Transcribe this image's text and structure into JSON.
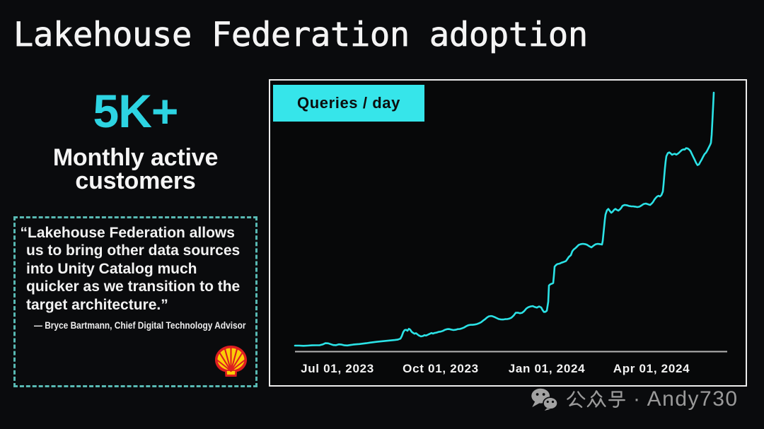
{
  "title": "Lakehouse Federation adoption",
  "stat": {
    "value": "5K+",
    "label": "Monthly active\ncustomers"
  },
  "quote": {
    "text": "“Lakehouse Federation allows\nus to bring other data sources\ninto Unity Catalog much\nquicker as we transition to the\ntarget architecture.”",
    "attribution": "— Bryce Bartmann, Chief Digital Technology Advisor",
    "logo": "shell-logo"
  },
  "chart_data": {
    "type": "line",
    "title": "Queries / day",
    "xlabel": "",
    "ylabel": "",
    "y_axis_visible": false,
    "legend": "none",
    "x_ticks": [
      {
        "label": "Jul 01, 2023",
        "pos": 0.1014
      },
      {
        "label": "Oct 01, 2023",
        "pos": 0.348
      },
      {
        "label": "Jan 01, 2024",
        "pos": 0.6014
      },
      {
        "label": "Apr 01, 2024",
        "pos": 0.8514
      }
    ],
    "value_units": "relative (0-100, unlabeled axis)",
    "points": [
      [
        0.0,
        2.31
      ],
      [
        0.0101,
        2.31
      ],
      [
        0.0203,
        2.23
      ],
      [
        0.0304,
        2.31
      ],
      [
        0.0405,
        2.42
      ],
      [
        0.0507,
        2.45
      ],
      [
        0.0591,
        2.48
      ],
      [
        0.0659,
        2.75
      ],
      [
        0.0726,
        3.24
      ],
      [
        0.0794,
        3.18
      ],
      [
        0.0845,
        2.91
      ],
      [
        0.0912,
        2.53
      ],
      [
        0.098,
        2.48
      ],
      [
        0.1047,
        2.8
      ],
      [
        0.1115,
        2.69
      ],
      [
        0.1182,
        2.42
      ],
      [
        0.125,
        2.37
      ],
      [
        0.1318,
        2.53
      ],
      [
        0.1385,
        2.69
      ],
      [
        0.1453,
        2.8
      ],
      [
        0.1537,
        2.91
      ],
      [
        0.1622,
        3.07
      ],
      [
        0.1706,
        3.24
      ],
      [
        0.1791,
        3.46
      ],
      [
        0.1875,
        3.62
      ],
      [
        0.1959,
        3.78
      ],
      [
        0.2044,
        3.92
      ],
      [
        0.2128,
        4.05
      ],
      [
        0.2213,
        4.19
      ],
      [
        0.2297,
        4.33
      ],
      [
        0.2382,
        4.46
      ],
      [
        0.2449,
        4.6
      ],
      [
        0.2517,
        4.98
      ],
      [
        0.2551,
        5.99
      ],
      [
        0.2584,
        7.48
      ],
      [
        0.2618,
        8.3
      ],
      [
        0.2652,
        8.41
      ],
      [
        0.2686,
        8.03
      ],
      [
        0.272,
        8.79
      ],
      [
        0.2753,
        8.41
      ],
      [
        0.2787,
        7.59
      ],
      [
        0.2821,
        7.21
      ],
      [
        0.2855,
        6.88
      ],
      [
        0.2889,
        7.1
      ],
      [
        0.2922,
        6.67
      ],
      [
        0.2956,
        6.23
      ],
      [
        0.3007,
        5.85
      ],
      [
        0.3057,
        6.01
      ],
      [
        0.3091,
        6.34
      ],
      [
        0.3125,
        6.18
      ],
      [
        0.3159,
        6.39
      ],
      [
        0.3209,
        6.78
      ],
      [
        0.326,
        7.16
      ],
      [
        0.3294,
        6.94
      ],
      [
        0.3328,
        7.16
      ],
      [
        0.3378,
        7.32
      ],
      [
        0.3429,
        7.59
      ],
      [
        0.348,
        7.7
      ],
      [
        0.353,
        7.97
      ],
      [
        0.3581,
        8.41
      ],
      [
        0.3632,
        8.65
      ],
      [
        0.3682,
        8.68
      ],
      [
        0.3733,
        8.46
      ],
      [
        0.3784,
        8.3
      ],
      [
        0.3834,
        8.41
      ],
      [
        0.3885,
        8.65
      ],
      [
        0.3936,
        8.71
      ],
      [
        0.3986,
        8.95
      ],
      [
        0.4037,
        9.28
      ],
      [
        0.4088,
        9.77
      ],
      [
        0.4139,
        10.15
      ],
      [
        0.4189,
        10.31
      ],
      [
        0.424,
        10.31
      ],
      [
        0.4291,
        10.42
      ],
      [
        0.4341,
        10.59
      ],
      [
        0.4392,
        10.91
      ],
      [
        0.4443,
        11.29
      ],
      [
        0.4493,
        11.95
      ],
      [
        0.4544,
        12.54
      ],
      [
        0.4578,
        13.03
      ],
      [
        0.4628,
        13.58
      ],
      [
        0.4679,
        13.71
      ],
      [
        0.4713,
        13.63
      ],
      [
        0.4764,
        13.31
      ],
      [
        0.4814,
        12.93
      ],
      [
        0.4865,
        12.54
      ],
      [
        0.4916,
        12.38
      ],
      [
        0.4966,
        12.35
      ],
      [
        0.5017,
        12.49
      ],
      [
        0.5068,
        12.52
      ],
      [
        0.5118,
        12.71
      ],
      [
        0.5169,
        13.09
      ],
      [
        0.522,
        13.85
      ],
      [
        0.527,
        14.94
      ],
      [
        0.5321,
        14.99
      ],
      [
        0.5372,
        14.78
      ],
      [
        0.5422,
        14.94
      ],
      [
        0.5473,
        15.59
      ],
      [
        0.5524,
        16.57
      ],
      [
        0.5574,
        17.12
      ],
      [
        0.5625,
        17.39
      ],
      [
        0.5676,
        17.52
      ],
      [
        0.5726,
        17.17
      ],
      [
        0.5777,
        16.95
      ],
      [
        0.5828,
        17.39
      ],
      [
        0.5878,
        17.01
      ],
      [
        0.5912,
        15.97
      ],
      [
        0.5946,
        15.27
      ],
      [
        0.598,
        15.32
      ],
      [
        0.6014,
        15.76
      ],
      [
        0.6047,
        19.18
      ],
      [
        0.6064,
        25.44
      ],
      [
        0.6098,
        25.93
      ],
      [
        0.6132,
        26.15
      ],
      [
        0.6166,
        26.42
      ],
      [
        0.6182,
        29.25
      ],
      [
        0.6199,
        32.73
      ],
      [
        0.6233,
        33.33
      ],
      [
        0.6267,
        33.71
      ],
      [
        0.6318,
        33.88
      ],
      [
        0.6368,
        34.26
      ],
      [
        0.6419,
        34.53
      ],
      [
        0.647,
        34.86
      ],
      [
        0.6503,
        35.62
      ],
      [
        0.6537,
        36.44
      ],
      [
        0.6588,
        37.14
      ],
      [
        0.6622,
        38.61
      ],
      [
        0.6655,
        39.32
      ],
      [
        0.6706,
        39.97
      ],
      [
        0.674,
        40.52
      ],
      [
        0.6774,
        41.06
      ],
      [
        0.6824,
        41.39
      ],
      [
        0.6875,
        41.5
      ],
      [
        0.6926,
        41.39
      ],
      [
        0.6976,
        41.12
      ],
      [
        0.7027,
        40.57
      ],
      [
        0.7078,
        40.14
      ],
      [
        0.7128,
        40.79
      ],
      [
        0.7179,
        41.33
      ],
      [
        0.723,
        41.5
      ],
      [
        0.728,
        41.39
      ],
      [
        0.7331,
        41.22
      ],
      [
        0.7348,
        42.59
      ],
      [
        0.7365,
        45.31
      ],
      [
        0.7382,
        48.03
      ],
      [
        0.7399,
        50.75
      ],
      [
        0.7416,
        52.82
      ],
      [
        0.7449,
        54.39
      ],
      [
        0.7483,
        54.94
      ],
      [
        0.7517,
        54.18
      ],
      [
        0.7551,
        53.47
      ],
      [
        0.7584,
        53.85
      ],
      [
        0.7618,
        54.56
      ],
      [
        0.7652,
        54.94
      ],
      [
        0.7686,
        54.56
      ],
      [
        0.772,
        54.29
      ],
      [
        0.7753,
        54.67
      ],
      [
        0.7787,
        55.27
      ],
      [
        0.7821,
        56.14
      ],
      [
        0.7872,
        56.46
      ],
      [
        0.7922,
        56.35
      ],
      [
        0.7973,
        56.08
      ],
      [
        0.8024,
        55.95
      ],
      [
        0.8074,
        55.92
      ],
      [
        0.8125,
        55.81
      ],
      [
        0.8176,
        55.65
      ],
      [
        0.8226,
        55.81
      ],
      [
        0.8277,
        56.3
      ],
      [
        0.8328,
        56.84
      ],
      [
        0.8378,
        57.01
      ],
      [
        0.8429,
        56.73
      ],
      [
        0.848,
        56.46
      ],
      [
        0.8514,
        56.95
      ],
      [
        0.8547,
        57.55
      ],
      [
        0.8581,
        58.48
      ],
      [
        0.8615,
        59.18
      ],
      [
        0.8649,
        59.73
      ],
      [
        0.8682,
        60.0
      ],
      [
        0.8716,
        59.73
      ],
      [
        0.875,
        60.27
      ],
      [
        0.8784,
        61.63
      ],
      [
        0.8801,
        64.35
      ],
      [
        0.8818,
        67.62
      ],
      [
        0.8834,
        70.72
      ],
      [
        0.8851,
        73.33
      ],
      [
        0.8868,
        75.24
      ],
      [
        0.8902,
        76.38
      ],
      [
        0.8936,
        76.71
      ],
      [
        0.897,
        76.33
      ],
      [
        0.9003,
        75.78
      ],
      [
        0.9037,
        76.05
      ],
      [
        0.9071,
        76.16
      ],
      [
        0.9105,
        75.84
      ],
      [
        0.9139,
        76.16
      ],
      [
        0.9172,
        76.6
      ],
      [
        0.9206,
        77.14
      ],
      [
        0.924,
        77.63
      ],
      [
        0.9274,
        77.85
      ],
      [
        0.9307,
        77.8
      ],
      [
        0.9341,
        78.34
      ],
      [
        0.9375,
        78.23
      ],
      [
        0.9409,
        77.85
      ],
      [
        0.9443,
        77.25
      ],
      [
        0.9476,
        76.11
      ],
      [
        0.951,
        74.97
      ],
      [
        0.9544,
        73.88
      ],
      [
        0.9578,
        72.68
      ],
      [
        0.9611,
        71.81
      ],
      [
        0.9645,
        72.08
      ],
      [
        0.9679,
        73.06
      ],
      [
        0.9713,
        73.99
      ],
      [
        0.9747,
        75.07
      ],
      [
        0.978,
        76.05
      ],
      [
        0.9814,
        76.6
      ],
      [
        0.9848,
        77.52
      ],
      [
        0.9882,
        78.61
      ],
      [
        0.9916,
        79.7
      ],
      [
        0.9932,
        80.41
      ],
      [
        0.9949,
        83.4
      ],
      [
        0.9966,
        88.57
      ],
      [
        0.9983,
        94.01
      ],
      [
        1.0,
        99.73
      ]
    ]
  },
  "watermark": {
    "cjk": "公众号",
    "latin": "· Andy730",
    "text": "公众号 · Andy730"
  },
  "colors": {
    "background": "#0a0b0d",
    "text_white": "#f3f3f3",
    "accent_cyan": "#2dd4e2",
    "badge_bg": "#36e5ea",
    "badge_text": "#0c0d0d",
    "line_cyan": "#2be2e6",
    "panel_border": "#ececec",
    "axis_gray": "#b5b5b5",
    "quote_dash": "#58b9b3",
    "watermark_gray": "#9a9a9a",
    "shell_red": "#dd1d21",
    "shell_yellow": "#fbce07"
  }
}
